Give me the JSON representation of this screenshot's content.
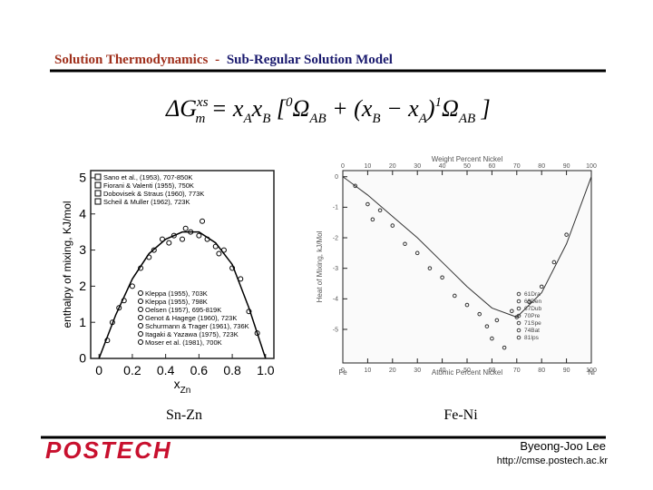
{
  "header": {
    "title": "Solution Thermodynamics",
    "separator": "-",
    "subtitle": "Sub-Regular Solution Model"
  },
  "equation": [
    {
      "text": "ΔG",
      "role": "base"
    },
    {
      "text": "xs",
      "role": "sup"
    },
    {
      "text": "m",
      "role": "sub"
    },
    {
      "text": " = x",
      "role": "base"
    },
    {
      "text": "A",
      "role": "sub"
    },
    {
      "text": "x",
      "role": "base"
    },
    {
      "text": "B",
      "role": "sub"
    },
    {
      "text": " [",
      "role": "base"
    },
    {
      "text": "0",
      "role": "sup"
    },
    {
      "text": "Ω",
      "role": "base"
    },
    {
      "text": "AB",
      "role": "sub"
    },
    {
      "text": " + (x",
      "role": "base"
    },
    {
      "text": "B",
      "role": "sub"
    },
    {
      "text": " − x",
      "role": "base"
    },
    {
      "text": "A",
      "role": "sub"
    },
    {
      "text": ")",
      "role": "base"
    },
    {
      "text": "1",
      "role": "sup"
    },
    {
      "text": "Ω",
      "role": "base"
    },
    {
      "text": "AB",
      "role": "sub"
    },
    {
      "text": " ]",
      "role": "base"
    }
  ],
  "charts": [
    {
      "type": "line",
      "caption": "Sn-Zn",
      "ylabel": "enthalpy of mixing, KJ/mol",
      "xlabel": "x",
      "xlabel_sub": "Zn",
      "xlim": [
        -0.05,
        1.05
      ],
      "ylim": [
        0,
        5.2
      ],
      "xticks": [
        0,
        0.2,
        0.4,
        0.6,
        0.8,
        {
          "value": 1,
          "label": "1.0"
        }
      ],
      "yticks": [
        0,
        1,
        2,
        3,
        4,
        5
      ],
      "legend_top": [
        "Sano et al., (1953), 707-850K",
        "Fiorani & Valenti (1955), 750K",
        "Dobovisek & Straus (1960), 773K",
        "Scheil & Muller (1962), 723K"
      ],
      "legend_bottom": [
        "Kleppa (1955), 703K",
        "Kleppa (1955), 798K",
        "Oelsen (1957), 695-819K",
        "Genot & Hagege (1960), 723K",
        "Schurmann & Trager (1961), 736K",
        "Itagaki & Yazawa (1975), 723K",
        "Moser et al. (1981), 700K"
      ],
      "x": [
        0,
        0.1,
        0.2,
        0.3,
        0.4,
        0.5,
        0.6,
        0.7,
        0.8,
        0.9,
        1
      ],
      "values": [
        0,
        1.2,
        2.2,
        2.9,
        3.3,
        3.5,
        3.5,
        3.2,
        2.6,
        1.4,
        0
      ],
      "points_x": [
        0.05,
        0.08,
        0.12,
        0.15,
        0.2,
        0.25,
        0.3,
        0.33,
        0.38,
        0.42,
        0.45,
        0.5,
        0.52,
        0.55,
        0.6,
        0.62,
        0.65,
        0.7,
        0.72,
        0.75,
        0.8,
        0.85,
        0.9,
        0.95
      ],
      "points": [
        0.5,
        1.0,
        1.4,
        1.6,
        2.0,
        2.5,
        2.8,
        3.0,
        3.3,
        3.2,
        3.4,
        3.3,
        3.6,
        3.5,
        3.4,
        3.8,
        3.3,
        3.1,
        2.9,
        3.0,
        2.5,
        2.2,
        1.3,
        0.7
      ],
      "color": "#000000"
    },
    {
      "type": "line",
      "caption": "Fe-Ni",
      "ylabel": "Heat of Mixing, kJ/Mol",
      "xlabel": "Atomic Percent Nickel",
      "xlabel_top": "Weight Percent Nickel",
      "left_end": "Fe",
      "right_end": "Ni",
      "xlim": [
        0,
        100
      ],
      "ylim": [
        -6.1,
        0.2
      ],
      "xticks": [
        0,
        10,
        20,
        30,
        40,
        50,
        60,
        70,
        80,
        90,
        100
      ],
      "yticks": [
        0,
        -1,
        -2,
        -3,
        -4,
        -5
      ],
      "legend": [
        "61Dra",
        "63Den",
        "67Dub",
        "70Pre",
        "71Spe",
        "74Bat",
        "81Ips"
      ],
      "x": [
        0,
        10,
        20,
        30,
        40,
        50,
        60,
        70,
        80,
        90,
        100
      ],
      "values": [
        0,
        -0.6,
        -1.3,
        -2.0,
        -2.8,
        -3.6,
        -4.3,
        -4.6,
        -3.8,
        -2.2,
        0
      ],
      "points_x": [
        5,
        10,
        12,
        15,
        20,
        25,
        30,
        35,
        40,
        45,
        50,
        55,
        58,
        60,
        62,
        65,
        68,
        70,
        75,
        80,
        85,
        90
      ],
      "points": [
        -0.3,
        -0.9,
        -1.4,
        -1.1,
        -1.6,
        -2.2,
        -2.5,
        -3.0,
        -3.3,
        -3.9,
        -4.2,
        -4.5,
        -4.9,
        -5.3,
        -4.7,
        -5.6,
        -4.4,
        -4.6,
        -4.1,
        -3.6,
        -2.8,
        -1.9
      ],
      "color": "#333333"
    }
  ],
  "footer": {
    "logo": "POSTECH",
    "author": "Byeong-Joo Lee",
    "url": "http://cmse.postech.ac.kr"
  }
}
